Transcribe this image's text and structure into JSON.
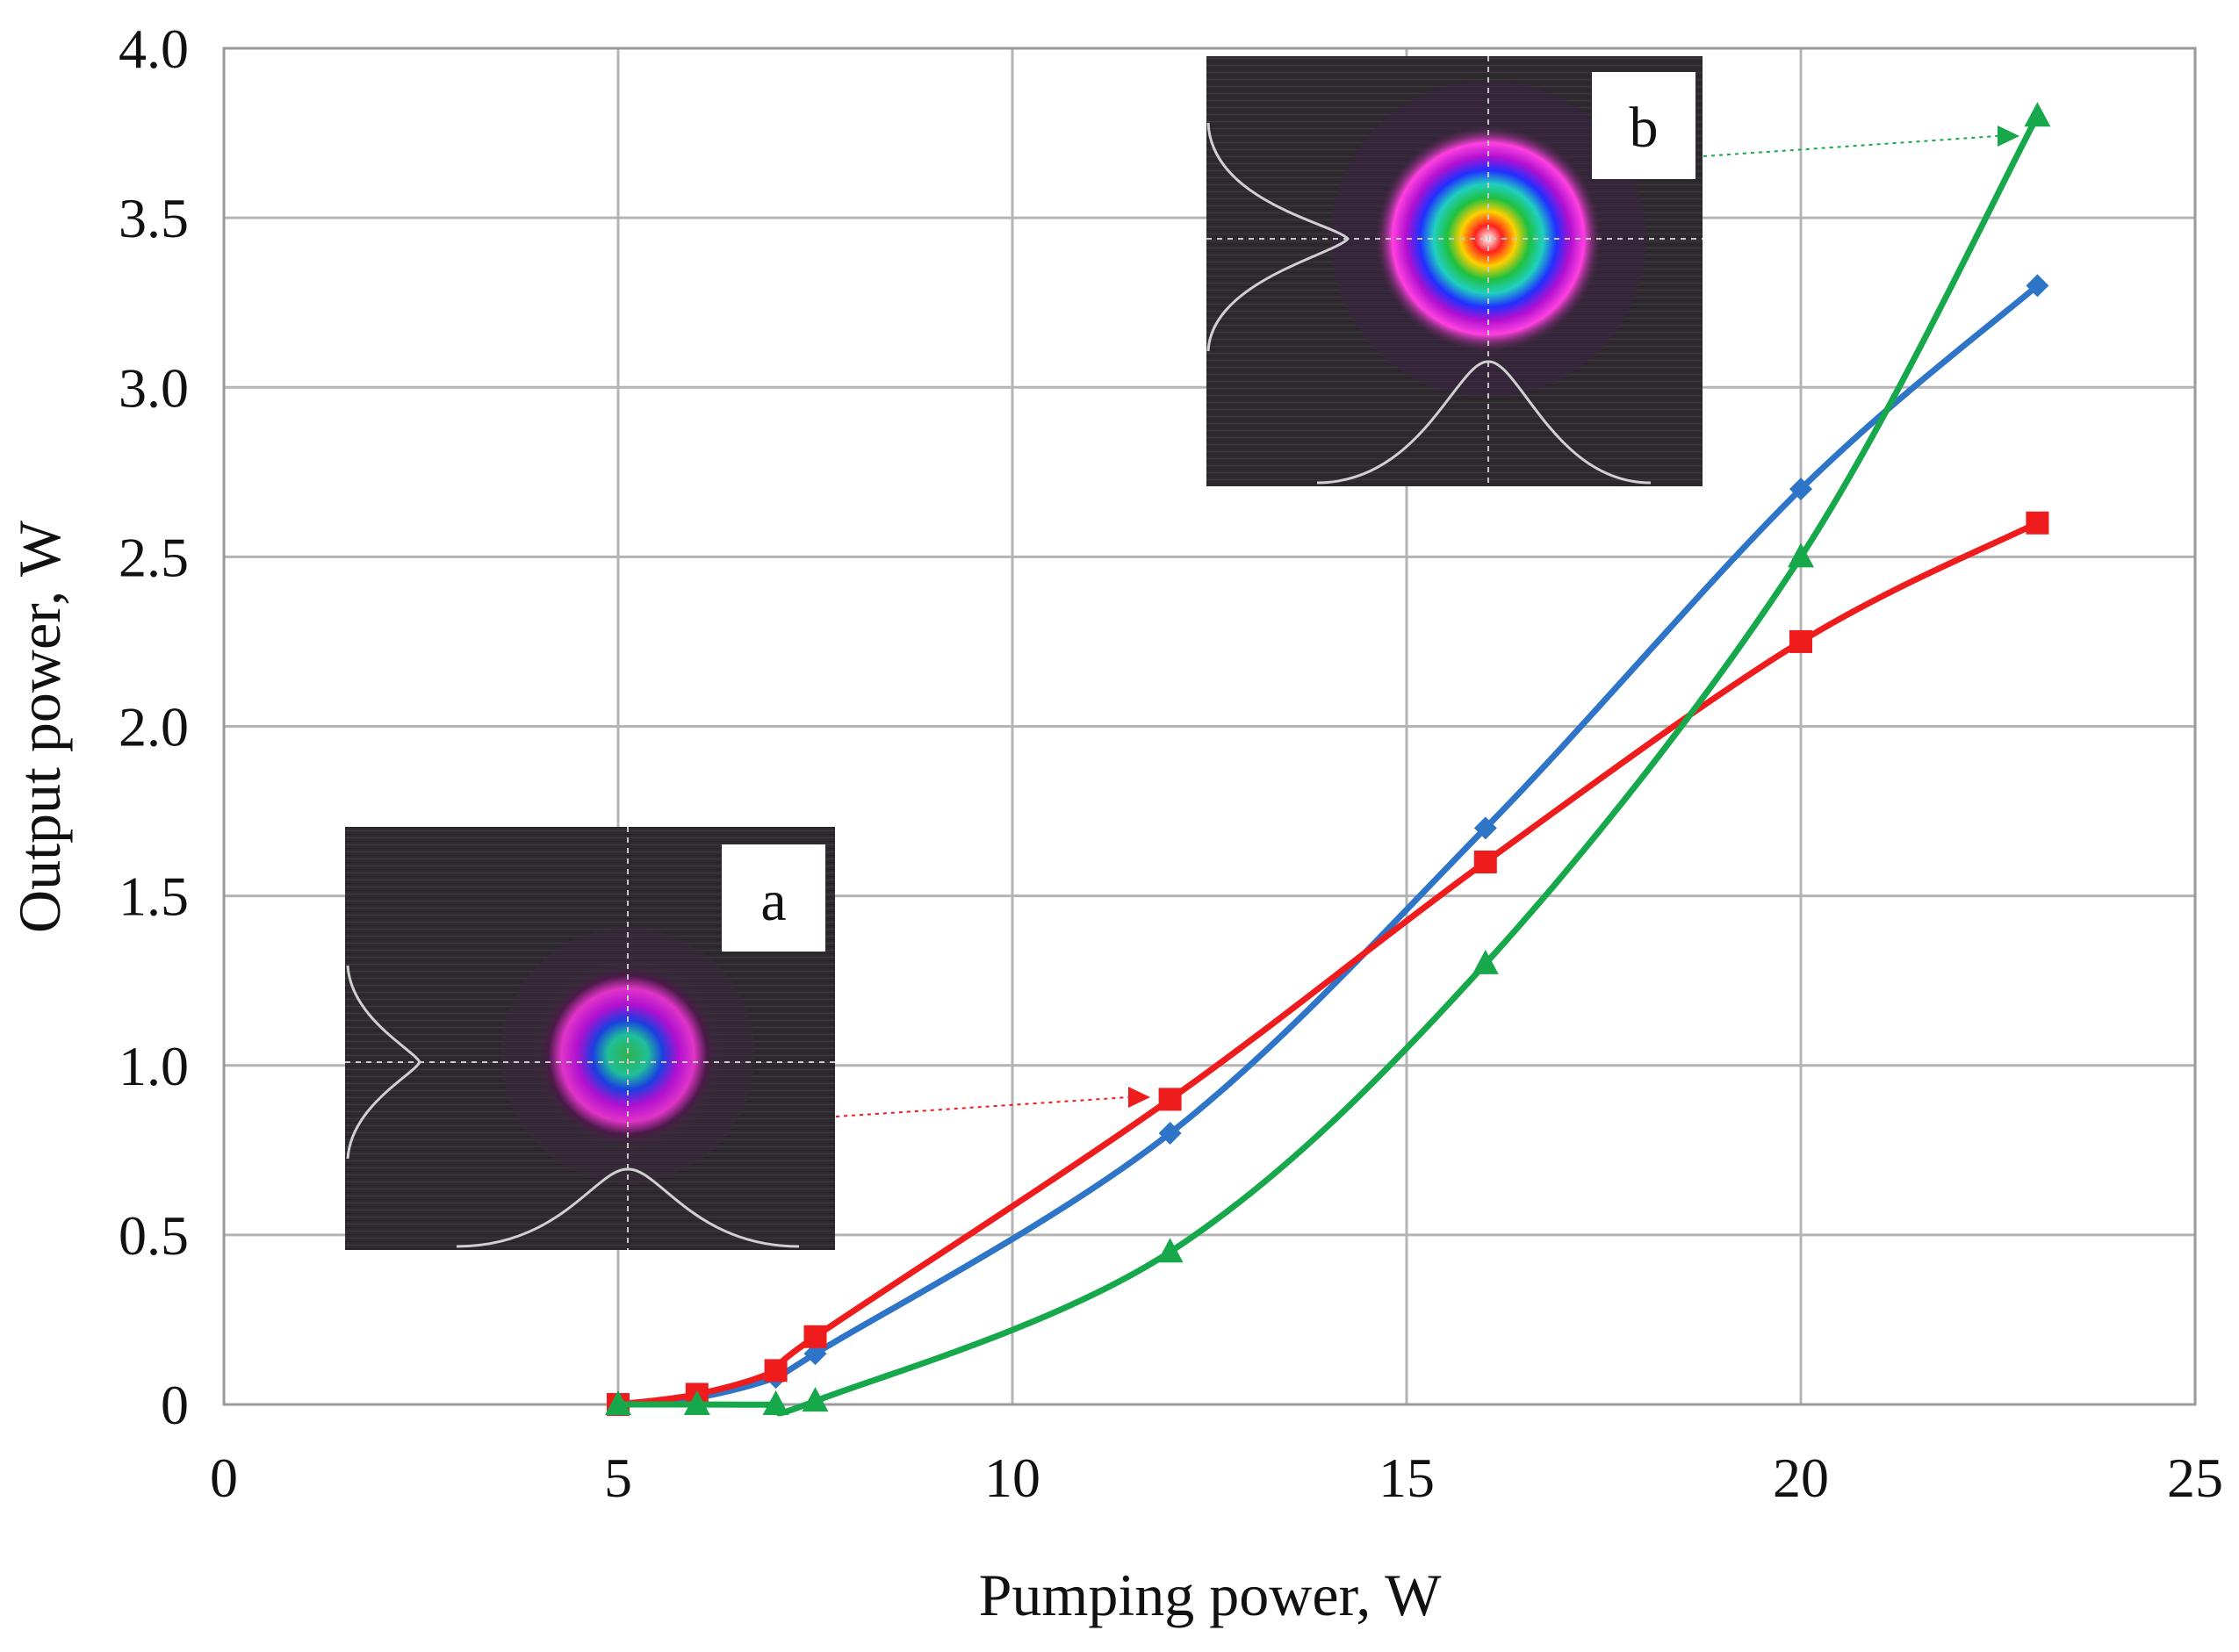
{
  "chart_data": {
    "type": "line",
    "title": "",
    "xlabel": "Pumping power, W",
    "ylabel": "Output power, W",
    "xlim": [
      0,
      25
    ],
    "ylim": [
      0,
      4.0
    ],
    "grid": true,
    "x_ticks": [
      "0",
      "5",
      "10",
      "15",
      "20",
      "25"
    ],
    "y_ticks": [
      "0",
      "0.5",
      "1.0",
      "1.5",
      "2.0",
      "2.5",
      "3.0",
      "3.5",
      "4.0"
    ],
    "series": [
      {
        "name": "blue-diamond",
        "color": "#2e75c8",
        "marker": "diamond",
        "x": [
          5,
          6,
          7,
          7.5,
          12,
          16,
          20,
          23
        ],
        "y": [
          0.0,
          0.02,
          0.08,
          0.15,
          0.8,
          1.7,
          2.7,
          3.3
        ]
      },
      {
        "name": "red-square",
        "color": "#ee1c1c",
        "marker": "square",
        "x": [
          5,
          6,
          7,
          7.5,
          12,
          16,
          20,
          23
        ],
        "y": [
          0.0,
          0.03,
          0.1,
          0.2,
          0.9,
          1.6,
          2.25,
          2.6
        ]
      },
      {
        "name": "green-triangle",
        "color": "#16a84a",
        "marker": "triangle",
        "x": [
          5,
          6,
          7,
          7.5,
          12,
          16,
          20,
          23
        ],
        "y": [
          0.0,
          0.0,
          0.0,
          0.01,
          0.45,
          1.3,
          2.5,
          3.8
        ]
      }
    ],
    "annotations": [
      {
        "label": "a",
        "description": "beam profile inset",
        "points_to": {
          "series": "red-square",
          "x": 12,
          "y": 0.9
        },
        "arrow_color": "#ee1c1c"
      },
      {
        "label": "b",
        "description": "beam profile inset",
        "points_to": {
          "series": "green-triangle",
          "x": 23,
          "y": 3.8
        },
        "arrow_color": "#16a84a"
      }
    ]
  }
}
